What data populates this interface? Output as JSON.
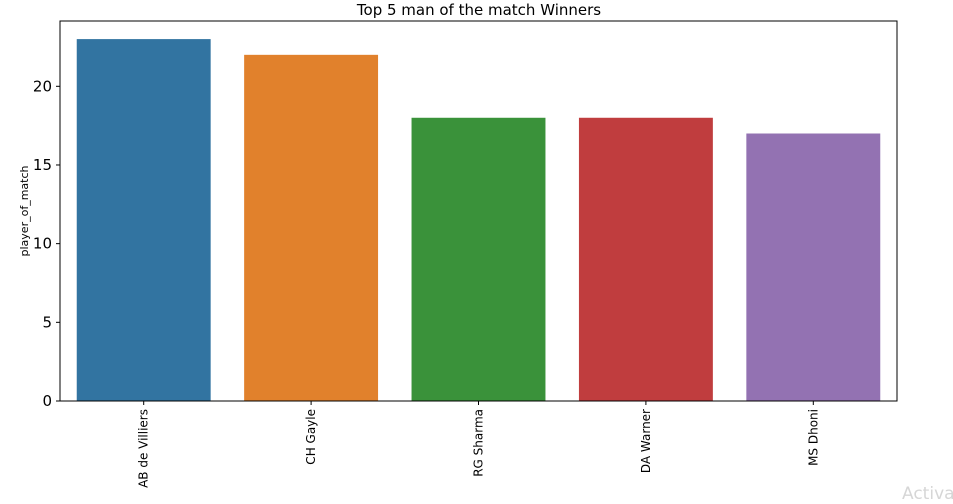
{
  "chart_data": {
    "type": "bar",
    "title": "Top 5 man of the match Winners",
    "xlabel": "",
    "ylabel": "player_of_match",
    "categories": [
      "AB de Villiers",
      "CH Gayle",
      "RG Sharma",
      "DA Warner",
      "MS Dhoni"
    ],
    "values": [
      23,
      22,
      18,
      18,
      17
    ],
    "colors": [
      "#3274a1",
      "#e1812c",
      "#3a923a",
      "#c03d3e",
      "#9372b2"
    ],
    "ylim": [
      0,
      24.15
    ],
    "yticks": [
      0,
      5,
      10,
      15,
      20
    ],
    "grid": false,
    "legend": "none"
  },
  "watermark": "Activa"
}
